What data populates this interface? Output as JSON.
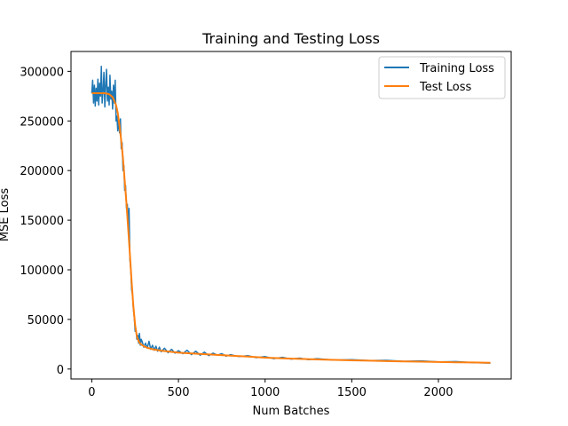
{
  "chart_data": {
    "type": "line",
    "title": "Training and Testing Loss",
    "xlabel": "Num Batches",
    "ylabel": "MSE Loss",
    "xlim": [
      -120,
      2420
    ],
    "ylim": [
      -10000,
      320000
    ],
    "xticks": [
      0,
      500,
      1000,
      1500,
      2000
    ],
    "yticks": [
      0,
      50000,
      100000,
      150000,
      200000,
      250000,
      300000
    ],
    "xtick_labels": [
      "0",
      "500",
      "1000",
      "1500",
      "2000"
    ],
    "ytick_labels": [
      "0",
      "50000",
      "100000",
      "150000",
      "200000",
      "250000",
      "300000"
    ],
    "grid": false,
    "legend_position": "upper right",
    "series": [
      {
        "name": "Training Loss",
        "color": "#1f77b4",
        "x": [
          0,
          5,
          10,
          15,
          20,
          25,
          30,
          35,
          40,
          45,
          50,
          55,
          60,
          65,
          70,
          75,
          80,
          85,
          90,
          95,
          100,
          105,
          110,
          115,
          120,
          125,
          130,
          135,
          140,
          145,
          150,
          155,
          160,
          165,
          170,
          175,
          180,
          185,
          190,
          195,
          200,
          205,
          210,
          215,
          220,
          225,
          230,
          235,
          240,
          245,
          250,
          255,
          260,
          265,
          270,
          275,
          280,
          285,
          290,
          300,
          310,
          320,
          330,
          340,
          350,
          360,
          370,
          380,
          390,
          400,
          420,
          440,
          460,
          480,
          500,
          525,
          550,
          575,
          600,
          625,
          650,
          675,
          700,
          725,
          750,
          775,
          800,
          850,
          900,
          950,
          1000,
          1050,
          1100,
          1150,
          1200,
          1250,
          1300,
          1400,
          1500,
          1600,
          1700,
          1800,
          1900,
          2000,
          2100,
          2200,
          2300
        ],
        "y": [
          278000,
          291000,
          268000,
          286000,
          265000,
          283000,
          270000,
          292000,
          266000,
          288000,
          275000,
          305000,
          268000,
          280000,
          299000,
          264000,
          287000,
          302000,
          270000,
          284000,
          266000,
          296000,
          272000,
          280000,
          262000,
          286000,
          268000,
          291000,
          250000,
          255000,
          240000,
          252000,
          238000,
          252000,
          222000,
          228000,
          200000,
          205000,
          180000,
          185000,
          162000,
          166000,
          140000,
          162000,
          110000,
          100000,
          80000,
          75000,
          60000,
          52000,
          38000,
          40000,
          30000,
          34000,
          26000,
          36000,
          24000,
          30000,
          28000,
          22000,
          26000,
          21000,
          28000,
          20000,
          24000,
          19000,
          23000,
          18000,
          22000,
          17500,
          21000,
          16500,
          20000,
          16000,
          18500,
          15500,
          19000,
          14500,
          18000,
          14000,
          17000,
          13500,
          16000,
          14000,
          15500,
          13000,
          14500,
          12500,
          13500,
          11500,
          12500,
          10500,
          11800,
          10000,
          11000,
          9500,
          10500,
          9000,
          9500,
          8500,
          8800,
          7800,
          8200,
          7200,
          7500,
          6500,
          6000
        ]
      },
      {
        "name": "Test Loss",
        "color": "#ff7f0e",
        "x": [
          0,
          25,
          50,
          75,
          100,
          120,
          140,
          150,
          160,
          170,
          180,
          190,
          200,
          210,
          220,
          230,
          240,
          250,
          260,
          270,
          280,
          300,
          320,
          350,
          400,
          450,
          500,
          600,
          700,
          800,
          900,
          1000,
          1100,
          1200,
          1300,
          1400,
          1500,
          1600,
          1700,
          1800,
          1900,
          2000,
          2100,
          2200,
          2300
        ],
        "y": [
          278000,
          278000,
          278000,
          278000,
          277000,
          274000,
          266000,
          258000,
          245000,
          230000,
          212000,
          190000,
          167000,
          142000,
          115000,
          88000,
          63000,
          44000,
          33000,
          28000,
          25500,
          23000,
          21500,
          20000,
          18500,
          17500,
          16500,
          15500,
          14500,
          13500,
          12500,
          11500,
          10800,
          10200,
          9700,
          9200,
          8800,
          8400,
          8000,
          7700,
          7400,
          7100,
          6800,
          6600,
          6400
        ]
      }
    ]
  }
}
